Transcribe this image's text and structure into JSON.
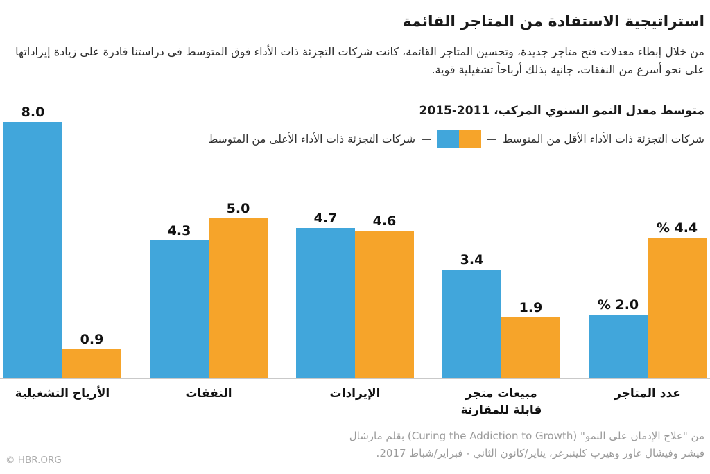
{
  "header": {
    "title": "استراتيجية الاستفادة من المتاجر القائمة",
    "intro": "من خلال إبطاء معدلات فتح متاجر جديدة، وتحسين المتاجر القائمة، كانت شركات التجزئة ذات الأداء فوق المتوسط في دراستنا قادرة على زيادة إيراداتها على نحو أسرع من النفقات، جانية بذلك أرباحاً تشغيلية قوية."
  },
  "chart": {
    "subtitle": "متوسط معدل النمو السنوي المركب، 2011-2015",
    "legend": {
      "below_average_label": "شركات التجزئة ذات الأداء الأقل من المتوسط",
      "above_average_label": "شركات التجزئة ذات الأداء الأعلى من المتوسط"
    }
  },
  "chart_data": {
    "type": "bar",
    "direction": "rtl",
    "title": "متوسط معدل النمو السنوي المركب، 2011-2015",
    "unit": "%",
    "ylim": [
      0,
      8.2
    ],
    "grid": false,
    "legend_position": "top",
    "categories": [
      "عدد المتاجر",
      "مبيعات متجر قابلة للمقارنة",
      "الإيرادات",
      "النفقات",
      "الأرباح التشغيلية"
    ],
    "categories_display": [
      [
        "عدد المتاجر"
      ],
      [
        "مبيعات متجر",
        "قابلة للمقارنة"
      ],
      [
        "الإيرادات"
      ],
      [
        "النفقات"
      ],
      [
        "الأرباح التشغيلية"
      ]
    ],
    "series": [
      {
        "name": "شركات التجزئة ذات الأداء الأقل من المتوسط",
        "color": "#F6A42A",
        "values": [
          4.4,
          1.9,
          4.6,
          5.0,
          0.9
        ],
        "labels": [
          "% 4.4",
          "1.9",
          "4.6",
          "5.0",
          "0.9"
        ]
      },
      {
        "name": "شركات التجزئة ذات الأداء الأعلى من المتوسط",
        "color": "#41A6DB",
        "values": [
          2.0,
          3.4,
          4.7,
          4.3,
          8.0
        ],
        "labels": [
          "% 2.0",
          "3.4",
          "4.7",
          "4.3",
          "8.0"
        ]
      }
    ],
    "colors": {
      "below_average": "#F6A42A",
      "above_average": "#41A6DB",
      "baseline": "#c9c9c9"
    }
  },
  "source": {
    "line1": "من \"علاج الإدمان على النمو\" (Curing the Addiction to Growth) بقلم مارشال",
    "line2": "فيشر وفيشال غاور وهيرب كلينبرغر، يناير/كانون الثاني - فبراير/شباط 2017."
  },
  "footer": {
    "copyright": "© HBR.ORG"
  }
}
